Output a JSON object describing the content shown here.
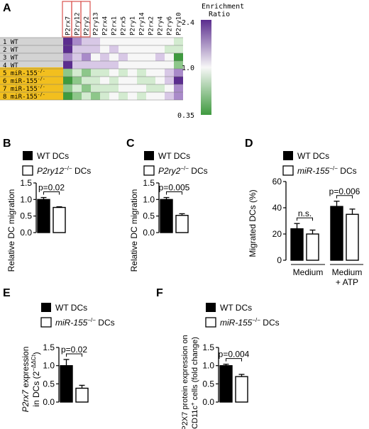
{
  "panels": {
    "A": "A",
    "B": "B",
    "C": "C",
    "D": "D",
    "E": "E",
    "F": "F"
  },
  "heatmap": {
    "genes": [
      "P2rx7",
      "P2ry12",
      "P2ry2",
      "P2ry13",
      "P2rx4",
      "P2rx1",
      "P2rx5",
      "P2ry1",
      "P2ry14",
      "P2rx2",
      "P2ry4",
      "P2ry6",
      "P2ry10"
    ],
    "highlighted_genes": [
      "P2rx7",
      "P2ry12",
      "P2ry2"
    ],
    "samples": [
      "1 WT",
      "2 WT",
      "3 WT",
      "4 WT",
      "5 miR-155",
      "6 miR-155",
      "7 miR-155",
      "8 miR-155"
    ],
    "sample_superscript": "-/-",
    "colorbar": {
      "title_line1": "Enrichment",
      "title_line2": "Ratio",
      "max": "2.4",
      "mid": "1.0",
      "min": "0.35"
    },
    "colors": {
      "wt_group": "#d3d3d3",
      "ko_group": "#f2bf1e",
      "high": "#5b2d8e",
      "mid": "#f7f7f7",
      "low": "#3f9a3f",
      "highlight_box": "#d9534f"
    }
  },
  "legend": {
    "wt": "WT DCs",
    "p2ry12_ko": "P2ry12",
    "p2ry2_ko": "P2ry2",
    "mir155_ko": "miR-155",
    "ko_sup": "−/−",
    "dcs": "DCs"
  },
  "chart_data": [
    {
      "panel": "B",
      "type": "bar",
      "ylabel": "Relative DC migration",
      "ylim": [
        0,
        1.5
      ],
      "yticks": [
        "0.0",
        "0.5",
        "1.0",
        "1.5"
      ],
      "categories": [
        "WT DCs",
        "P2ry12-/- DCs"
      ],
      "series": [
        {
          "values": [
            1.0,
            0.76
          ],
          "errors": [
            0.06,
            0.02
          ]
        }
      ],
      "annotations": [
        {
          "text": "p=0.02",
          "between": [
            0,
            1
          ]
        }
      ]
    },
    {
      "panel": "C",
      "type": "bar",
      "ylabel": "Relative DC migration",
      "ylim": [
        0,
        1.5
      ],
      "yticks": [
        "0.0",
        "0.5",
        "1.0",
        "1.5"
      ],
      "categories": [
        "WT DCs",
        "P2ry2-/- DCs"
      ],
      "series": [
        {
          "values": [
            1.0,
            0.52
          ],
          "errors": [
            0.06,
            0.05
          ]
        }
      ],
      "annotations": [
        {
          "text": "p=0.005",
          "between": [
            0,
            1
          ]
        }
      ]
    },
    {
      "panel": "D",
      "type": "bar",
      "ylabel": "Migrated DCs (%)",
      "ylim": [
        0,
        60
      ],
      "yticks": [
        "0",
        "20",
        "40",
        "60"
      ],
      "categories": [
        "Medium",
        "Medium + ATP"
      ],
      "series": [
        {
          "name": "WT DCs",
          "values": [
            24,
            41
          ],
          "errors": [
            4,
            4
          ]
        },
        {
          "name": "miR-155-/- DCs",
          "values": [
            20,
            35
          ],
          "errors": [
            3,
            4
          ]
        }
      ],
      "annotations": [
        {
          "text": "n.s.",
          "group": 0
        },
        {
          "text": "p=0.006",
          "group": 1
        }
      ]
    },
    {
      "panel": "E",
      "type": "bar",
      "ylabel": "P2rx7 expression in DCs (2-ΔΔCt)",
      "ylim": [
        0,
        1.5
      ],
      "yticks": [
        "0.0",
        "0.5",
        "1.0",
        "1.5"
      ],
      "categories": [
        "WT DCs",
        "miR-155-/- DCs"
      ],
      "series": [
        {
          "values": [
            1.0,
            0.38
          ],
          "errors": [
            0.17,
            0.08
          ]
        }
      ],
      "annotations": [
        {
          "text": "p=0.02",
          "between": [
            0,
            1
          ]
        }
      ]
    },
    {
      "panel": "F",
      "type": "bar",
      "ylabel": "P2X7 protein expression on CD11c+ cells (fold change)",
      "ylim": [
        0,
        1.5
      ],
      "yticks": [
        "0.0",
        "0.5",
        "1.0",
        "1.5"
      ],
      "categories": [
        "WT DCs",
        "miR-155-/- DCs"
      ],
      "series": [
        {
          "values": [
            1.0,
            0.7
          ],
          "errors": [
            0.04,
            0.06
          ]
        }
      ],
      "annotations": [
        {
          "text": "p=0.004",
          "between": [
            0,
            1
          ]
        }
      ]
    }
  ],
  "xgroups": {
    "medium": "Medium",
    "medium_atp_1": "Medium",
    "medium_atp_2": "+ ATP"
  }
}
